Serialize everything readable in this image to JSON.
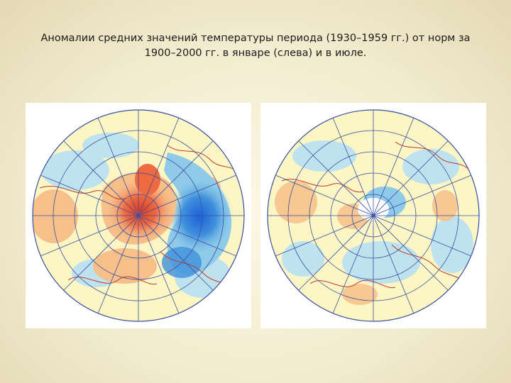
{
  "slide": {
    "title_line1": "Аномалии средних значений температуры периода (1930–1959 гг.) от норм за",
    "title_line2": "1900–2000 гг. в январе (слева) и в июле."
  },
  "maps": [
    {
      "id": "january",
      "pattern": "strong warm anomaly over the Arctic and Europe, strong cold anomaly over North Atlantic / eastern Canada"
    },
    {
      "id": "july",
      "pattern": "weak anomalies, mostly near-zero with scattered slight warm and cold patches"
    }
  ],
  "colors": {
    "neutral": "#fbf6c4",
    "warm_light": "#f7c08a",
    "warm_mid": "#ef8050",
    "warm_strong": "#e03c20",
    "cold_light": "#bfe3ee",
    "cold_mid": "#8fcbe9",
    "cold_strong": "#3f90dc",
    "cold_deep": "#1e60d8",
    "grid": "#3a4fa0",
    "borders": "#c0392b"
  }
}
